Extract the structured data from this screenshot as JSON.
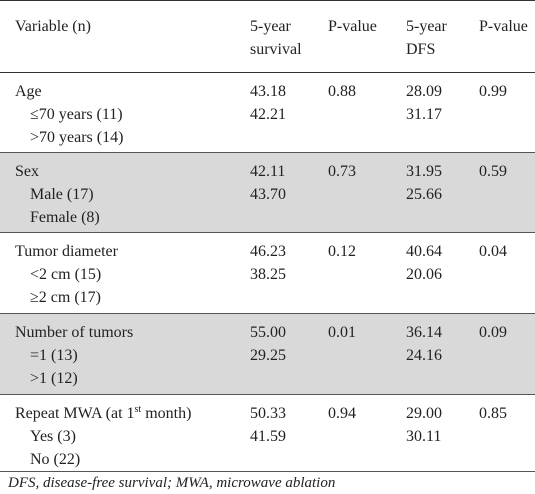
{
  "header": {
    "variable": "Variable (n)",
    "survival_line1": "5-year",
    "survival_line2": "survival",
    "p_value_1": "P-value",
    "dfs_line1": "5-year",
    "dfs_line2": "DFS",
    "p_value_2": "P-value"
  },
  "groups": [
    {
      "name": "Age",
      "survival": "43.18",
      "p1": "0.88",
      "dfs": "28.09",
      "p2": "0.99",
      "subs": [
        {
          "label": "≤70 years (11)",
          "survival": "42.21",
          "dfs": "31.17"
        },
        {
          "label": ">70 years (14)"
        }
      ]
    },
    {
      "name": "Sex",
      "survival": "42.11",
      "p1": "0.73",
      "dfs": "31.95",
      "p2": "0.59",
      "subs": [
        {
          "label": "Male (17)",
          "survival": "43.70",
          "dfs": "25.66"
        },
        {
          "label": "Female (8)"
        }
      ]
    },
    {
      "name": "Tumor diameter",
      "survival": "46.23",
      "p1": "0.12",
      "dfs": "40.64",
      "p2": "0.04",
      "subs": [
        {
          "label": "<2 cm (15)",
          "survival": "38.25",
          "dfs": "20.06"
        },
        {
          "label": "≥2 cm (17)"
        }
      ]
    },
    {
      "name": "Number of tumors",
      "survival": "55.00",
      "p1": "0.01",
      "dfs": "36.14",
      "p2": "0.09",
      "subs": [
        {
          "label": "=1 (13)",
          "survival": "29.25",
          "dfs": "24.16"
        },
        {
          "label": ">1 (12)"
        }
      ]
    },
    {
      "name_prefix": "Repeat MWA (at 1",
      "name_sup": "st",
      "name_suffix": " month)",
      "survival": "50.33",
      "p1": "0.94",
      "dfs": "29.00",
      "p2": "0.85",
      "subs": [
        {
          "label": "Yes (3)",
          "survival": "41.59",
          "dfs": "30.11"
        },
        {
          "label": "No (22)"
        }
      ]
    }
  ],
  "footnote": "DFS, disease-free survival; MWA, microwave ablation"
}
